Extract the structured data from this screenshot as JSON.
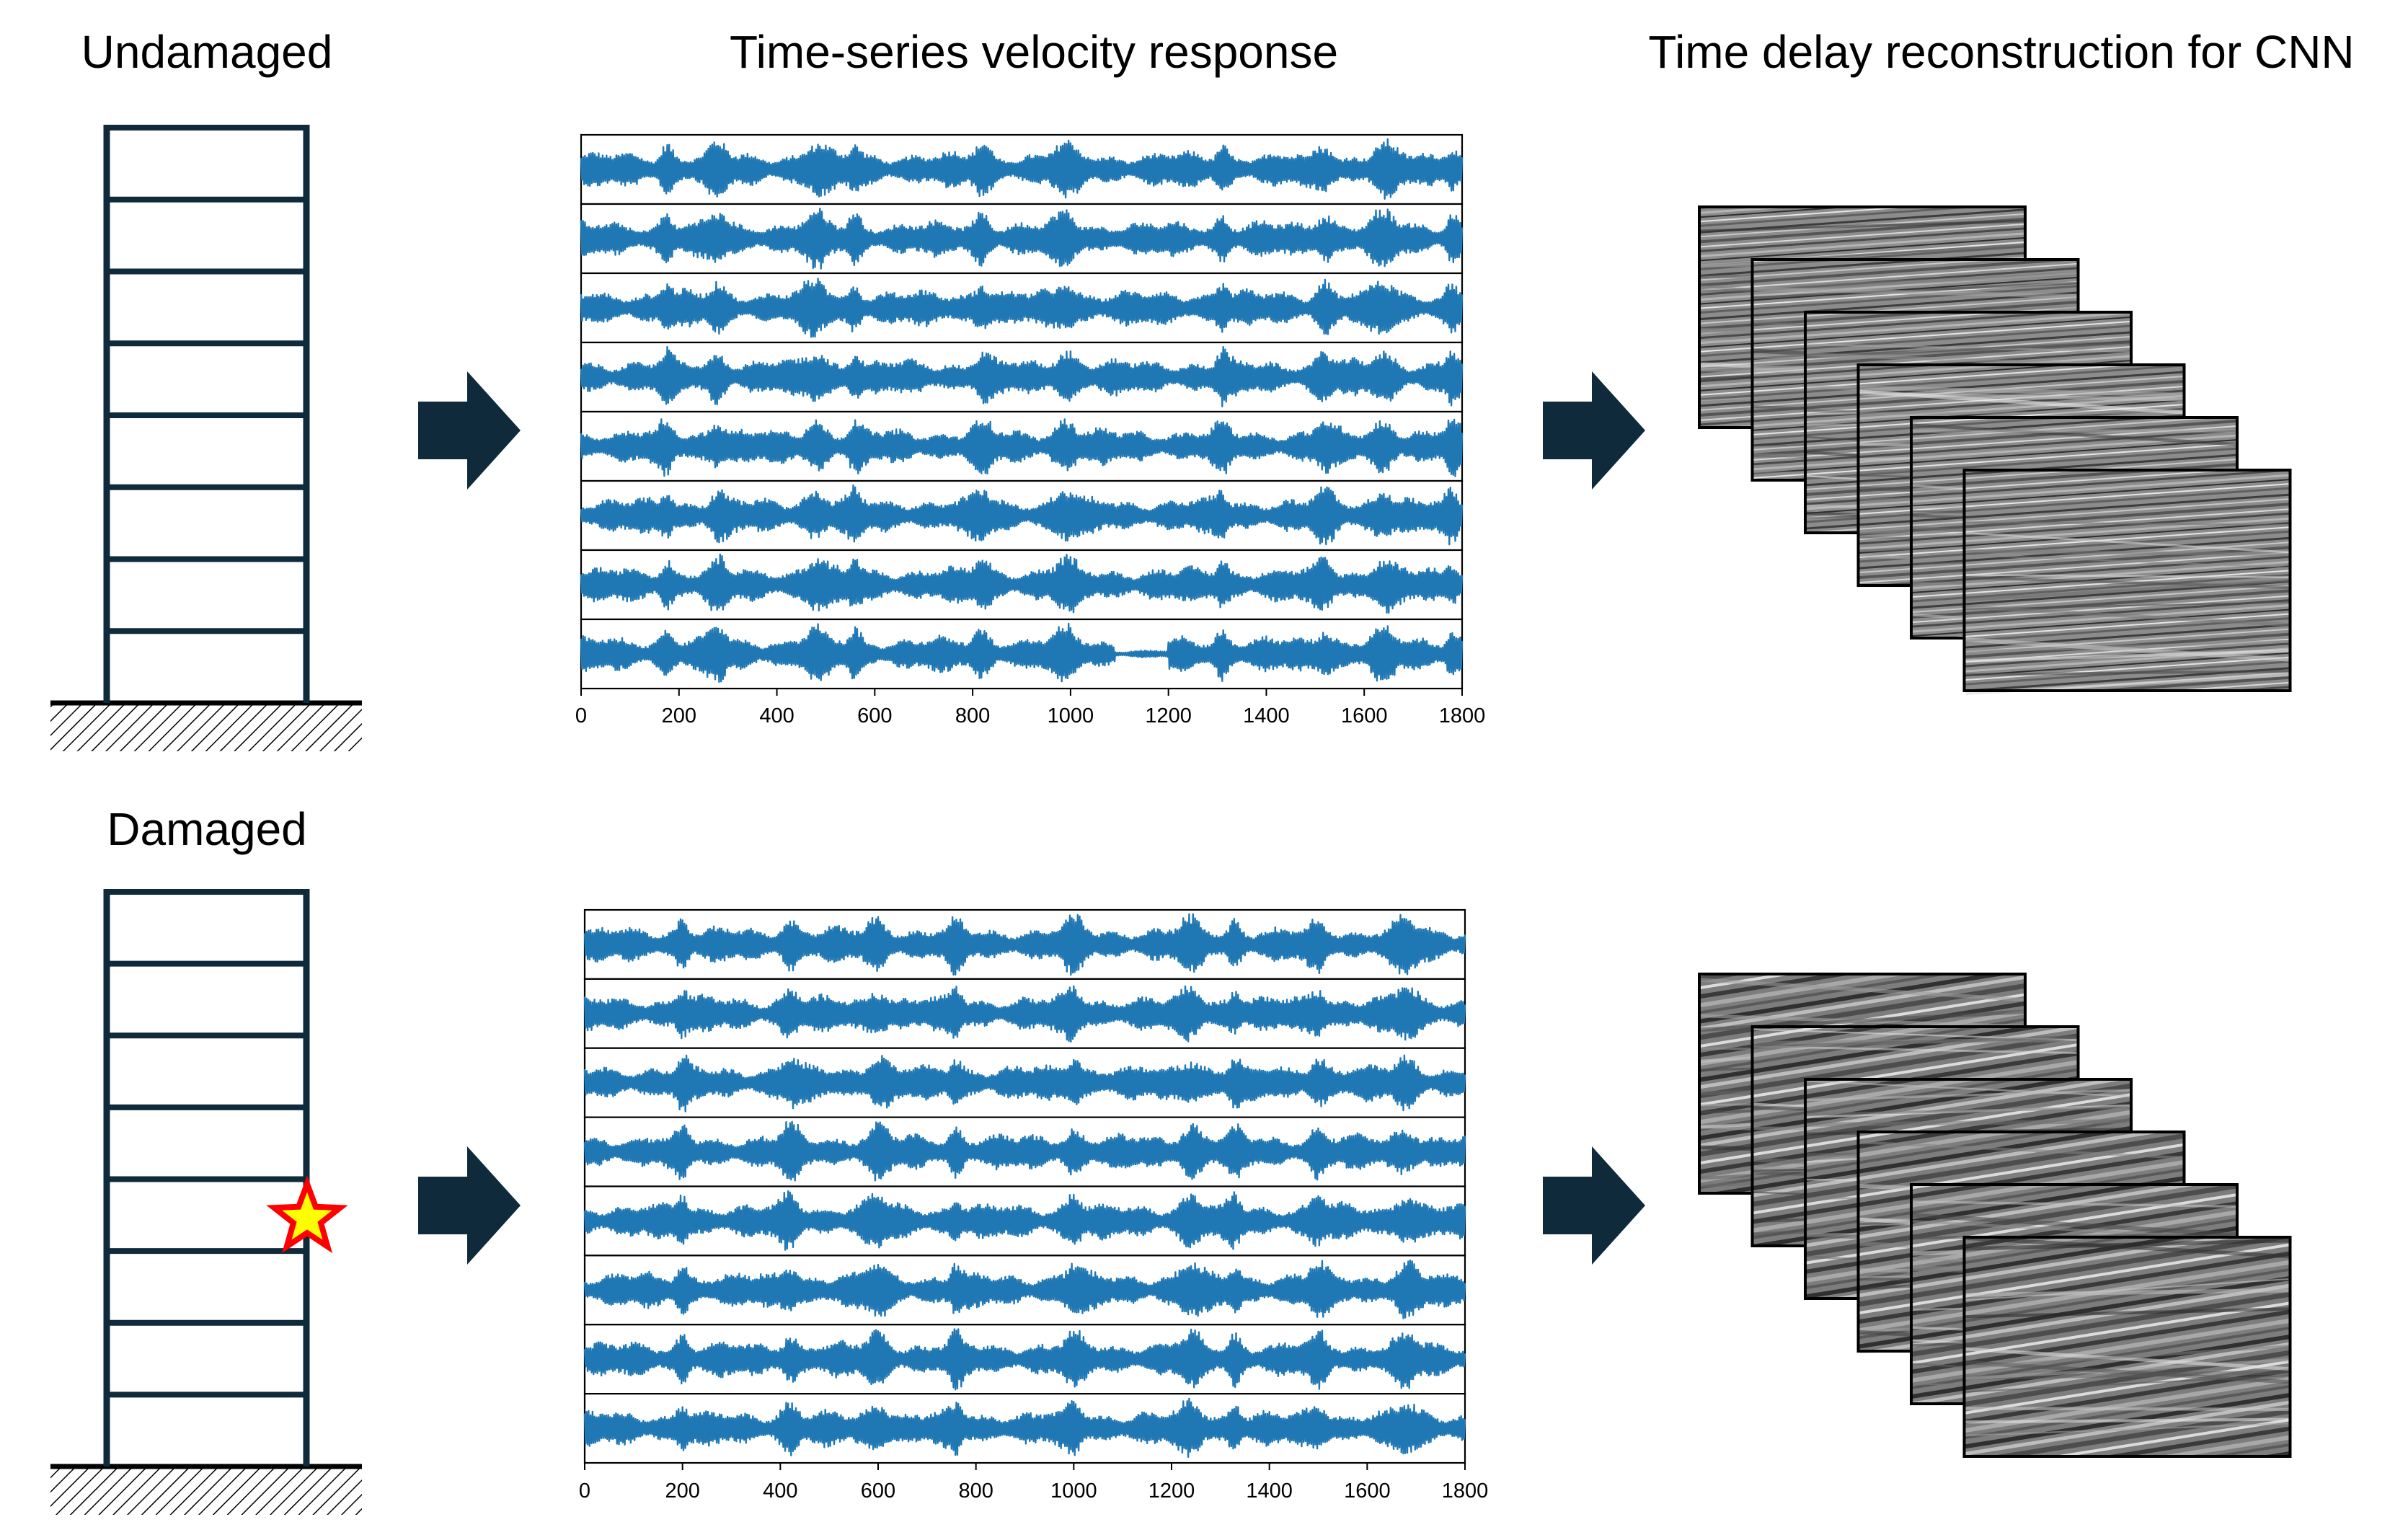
{
  "labels": {
    "undamaged": "Undamaged",
    "damaged": "Damaged",
    "timeseries_title": "Time-series velocity response",
    "reconstruction_title": "Time delay reconstruction for CNN"
  },
  "colors": {
    "frame": "#0f2a3b",
    "arrow": "#0f2a3b",
    "signal": "#1f77b4",
    "star_fill": "#ffff00",
    "star_outline": "#ff0000"
  },
  "building": {
    "stories": 8,
    "damage_marker": "star-icon"
  },
  "rows": [
    {
      "name": "undamaged",
      "chart_data": {
        "type": "line",
        "channels": 8,
        "xlim": [
          0,
          1800
        ],
        "xticks": [
          "0",
          "200",
          "400",
          "600",
          "800",
          "1000",
          "1200",
          "1400",
          "1600",
          "1800"
        ]
      }
    },
    {
      "name": "damaged",
      "chart_data": {
        "type": "line",
        "channels": 8,
        "xlim": [
          0,
          1800
        ],
        "xticks": [
          "0",
          "200",
          "400",
          "600",
          "800",
          "1000",
          "1200",
          "1400",
          "1600",
          "1800"
        ]
      }
    }
  ],
  "image_stack": {
    "count": 6,
    "style": "grayscale"
  }
}
